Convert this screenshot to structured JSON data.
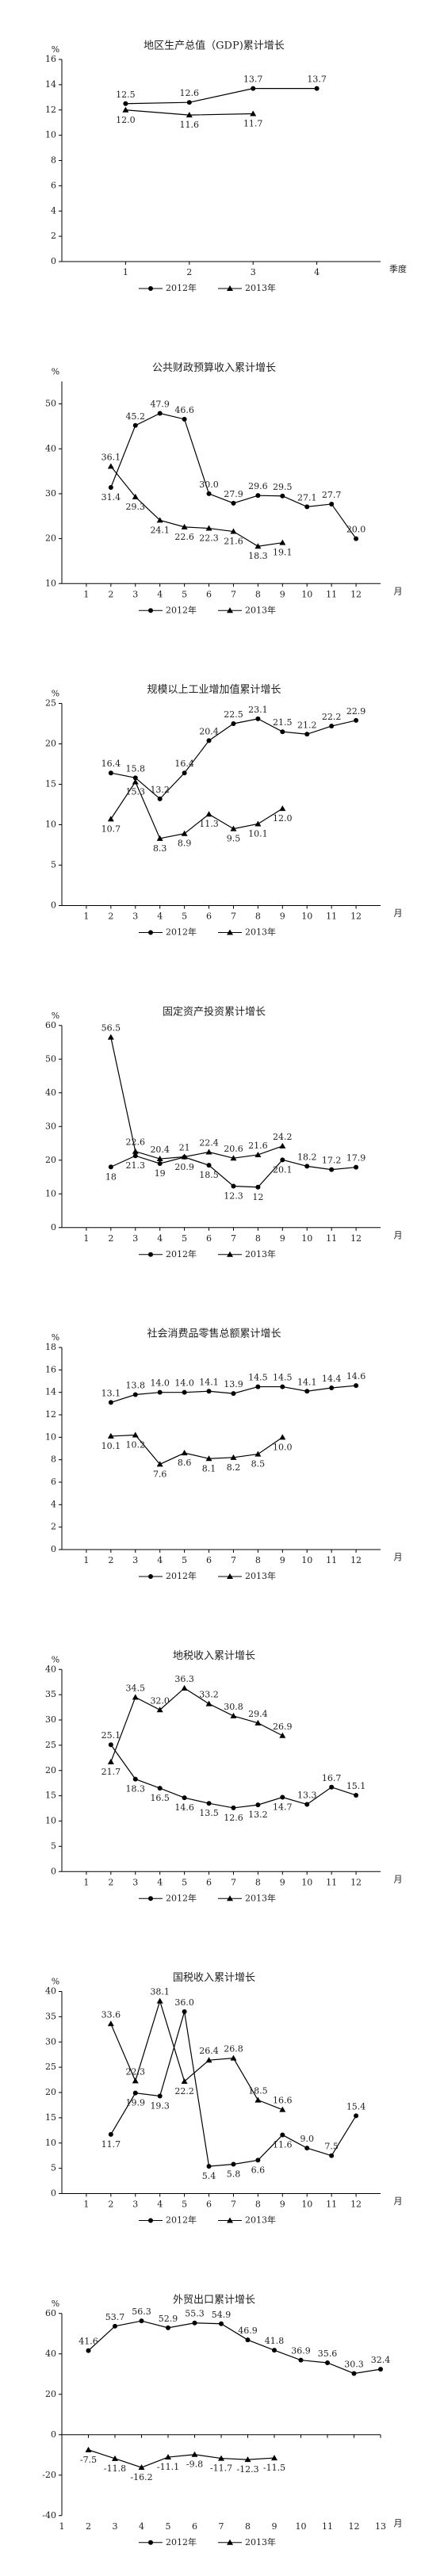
{
  "chart_data": [
    {
      "type": "line",
      "title": "地区生产总值（GDP)累计增长",
      "y_label": "%",
      "x_label": "季度",
      "x": [
        1,
        2,
        3,
        4
      ],
      "xlim": [
        0,
        5
      ],
      "xticks": [
        1,
        2,
        3,
        4
      ],
      "ylim": [
        0,
        16
      ],
      "yticks": [
        0,
        2,
        4,
        6,
        8,
        10,
        12,
        14,
        16
      ],
      "series": [
        {
          "name": "2012年",
          "color": "#000000",
          "marker": "circle",
          "values": [
            12.5,
            12.6,
            13.7,
            13.7
          ],
          "value_labels": [
            "12.5",
            "12.6",
            "13.7",
            "13.7"
          ]
        },
        {
          "name": "2013年",
          "color": "#000000",
          "marker": "triangle",
          "values": [
            12.0,
            11.6,
            11.7,
            null
          ],
          "value_labels": [
            "12.0",
            "11.6",
            "11.7",
            null
          ]
        }
      ]
    },
    {
      "type": "line",
      "title": "公共财政预算收入累计增长",
      "y_label": "%",
      "x_label": "月",
      "x": [
        1,
        2,
        3,
        4,
        5,
        6,
        7,
        8,
        9,
        10,
        11,
        12
      ],
      "xlim": [
        0,
        13
      ],
      "xticks": [
        1,
        2,
        3,
        4,
        5,
        6,
        7,
        8,
        9,
        10,
        11,
        12
      ],
      "ylim": [
        10,
        55
      ],
      "yticks": [
        10,
        20,
        30,
        40,
        50
      ],
      "series": [
        {
          "name": "2012年",
          "color": "#000000",
          "marker": "circle",
          "values": [
            null,
            31.4,
            45.2,
            47.9,
            46.6,
            30.0,
            27.9,
            29.6,
            29.5,
            27.1,
            27.7,
            20.0
          ],
          "value_labels": [
            null,
            "31.4",
            "45.2",
            "47.9",
            "46.6",
            "30.0",
            "27.9",
            "29.6",
            "29.5",
            "27.1",
            "27.7",
            "20.0"
          ]
        },
        {
          "name": "2013年",
          "color": "#000000",
          "marker": "triangle",
          "values": [
            null,
            36.1,
            29.3,
            24.1,
            22.6,
            22.3,
            21.6,
            18.3,
            19.1,
            null,
            null,
            null
          ],
          "value_labels": [
            null,
            "36.1",
            "29.3",
            "24.1",
            "22.6",
            "22.3",
            "21.6",
            "18.3",
            "19.1",
            null,
            null,
            null
          ]
        }
      ]
    },
    {
      "type": "line",
      "title": "规模以上工业增加值累计增长",
      "y_label": "%",
      "x_label": "月",
      "x": [
        1,
        2,
        3,
        4,
        5,
        6,
        7,
        8,
        9,
        10,
        11,
        12
      ],
      "xlim": [
        0,
        13
      ],
      "xticks": [
        1,
        2,
        3,
        4,
        5,
        6,
        7,
        8,
        9,
        10,
        11,
        12
      ],
      "ylim": [
        0,
        25
      ],
      "yticks": [
        0,
        5,
        10,
        15,
        20,
        25
      ],
      "series": [
        {
          "name": "2012年",
          "color": "#000000",
          "marker": "circle",
          "values": [
            null,
            16.4,
            15.8,
            13.2,
            16.4,
            20.4,
            22.5,
            23.1,
            21.5,
            21.2,
            22.2,
            22.9
          ],
          "value_labels": [
            null,
            "16.4",
            "15.8",
            "13.2",
            "16.4",
            "20.4",
            "22.5",
            "23.1",
            "21.5",
            "21.2",
            "22.2",
            "22.9"
          ]
        },
        {
          "name": "2013年",
          "color": "#000000",
          "marker": "triangle",
          "values": [
            null,
            10.7,
            15.3,
            8.3,
            8.9,
            11.3,
            9.5,
            10.1,
            12.0,
            null,
            null,
            null
          ],
          "value_labels": [
            null,
            "10.7",
            "15.3",
            "8.3",
            "8.9",
            "11.3",
            "9.5",
            "10.1",
            "12.0",
            null,
            null,
            null
          ]
        }
      ]
    },
    {
      "type": "line",
      "title": "固定资产投资累计增长",
      "y_label": "%",
      "x_label": "月",
      "x": [
        1,
        2,
        3,
        4,
        5,
        6,
        7,
        8,
        9,
        10,
        11,
        12
      ],
      "xlim": [
        0,
        13
      ],
      "xticks": [
        1,
        2,
        3,
        4,
        5,
        6,
        7,
        8,
        9,
        10,
        11,
        12
      ],
      "ylim": [
        0,
        60
      ],
      "yticks": [
        0,
        10,
        20,
        30,
        40,
        50,
        60
      ],
      "series": [
        {
          "name": "2012年",
          "color": "#000000",
          "marker": "circle",
          "values": [
            null,
            18,
            21.3,
            19,
            20.9,
            18.5,
            12.3,
            12,
            20.1,
            18.2,
            17.2,
            17.9
          ],
          "value_labels": [
            null,
            "18",
            "21.3",
            "19",
            "20.9",
            "18.5",
            "12.3",
            "12",
            "20.1",
            "18.2",
            "17.2",
            "17.9"
          ]
        },
        {
          "name": "2013年",
          "color": "#000000",
          "marker": "triangle",
          "values": [
            null,
            56.5,
            22.6,
            20.4,
            21,
            22.4,
            20.6,
            21.6,
            24.2,
            null,
            null,
            null
          ],
          "value_labels": [
            null,
            "56.5",
            "22.6",
            "20.4",
            "21",
            "22.4",
            "20.6",
            "21.6",
            "24.2",
            null,
            null,
            null
          ]
        }
      ]
    },
    {
      "type": "line",
      "title": "社会消费品零售总额累计增长",
      "y_label": "%",
      "x_label": "月",
      "x": [
        1,
        2,
        3,
        4,
        5,
        6,
        7,
        8,
        9,
        10,
        11,
        12
      ],
      "xlim": [
        0,
        13
      ],
      "xticks": [
        1,
        2,
        3,
        4,
        5,
        6,
        7,
        8,
        9,
        10,
        11,
        12
      ],
      "ylim": [
        0,
        18
      ],
      "yticks": [
        0,
        2,
        4,
        6,
        8,
        10,
        12,
        14,
        16,
        18
      ],
      "series": [
        {
          "name": "2012年",
          "color": "#000000",
          "marker": "circle",
          "values": [
            null,
            13.1,
            13.8,
            14.0,
            14.0,
            14.1,
            13.9,
            14.5,
            14.5,
            14.1,
            14.4,
            14.6
          ],
          "value_labels": [
            null,
            "13.1",
            "13.8",
            "14.0",
            "14.0",
            "14.1",
            "13.9",
            "14.5",
            "14.5",
            "14.1",
            "14.4",
            "14.6"
          ]
        },
        {
          "name": "2013年",
          "color": "#000000",
          "marker": "triangle",
          "values": [
            null,
            10.1,
            10.2,
            7.6,
            8.6,
            8.1,
            8.2,
            8.5,
            10.0,
            null,
            null,
            null
          ],
          "value_labels": [
            null,
            "10.1",
            "10.2",
            "7.6",
            "8.6",
            "8.1",
            "8.2",
            "8.5",
            "10.0",
            null,
            null,
            null
          ]
        }
      ]
    },
    {
      "type": "line",
      "title": "地税收入累计增长",
      "y_label": "%",
      "x_label": "月",
      "x": [
        1,
        2,
        3,
        4,
        5,
        6,
        7,
        8,
        9,
        10,
        11,
        12
      ],
      "xlim": [
        0,
        13
      ],
      "xticks": [
        1,
        2,
        3,
        4,
        5,
        6,
        7,
        8,
        9,
        10,
        11,
        12
      ],
      "ylim": [
        0,
        40
      ],
      "yticks": [
        0,
        5,
        10,
        15,
        20,
        25,
        30,
        35,
        40
      ],
      "series": [
        {
          "name": "2012年",
          "color": "#000000",
          "marker": "circle",
          "values": [
            null,
            25.1,
            18.3,
            16.5,
            14.6,
            13.5,
            12.6,
            13.2,
            14.7,
            13.3,
            16.7,
            15.1
          ],
          "value_labels": [
            null,
            "25.1",
            "18.3",
            "16.5",
            "14.6",
            "13.5",
            "12.6",
            "13.2",
            "14.7",
            "13.3",
            "16.7",
            "15.1"
          ]
        },
        {
          "name": "2013年",
          "color": "#000000",
          "marker": "triangle",
          "values": [
            null,
            21.7,
            34.5,
            32.0,
            36.3,
            33.2,
            30.8,
            29.4,
            26.9,
            null,
            null,
            null
          ],
          "value_labels": [
            null,
            "21.7",
            "34.5",
            "32.0",
            "36.3",
            "33.2",
            "30.8",
            "29.4",
            "26.9",
            null,
            null,
            null
          ]
        }
      ]
    },
    {
      "type": "line",
      "title": "国税收入累计增长",
      "y_label": "%",
      "x_label": "月",
      "x": [
        1,
        2,
        3,
        4,
        5,
        6,
        7,
        8,
        9,
        10,
        11,
        12
      ],
      "xlim": [
        0,
        13
      ],
      "xticks": [
        1,
        2,
        3,
        4,
        5,
        6,
        7,
        8,
        9,
        10,
        11,
        12
      ],
      "ylim": [
        0,
        40
      ],
      "yticks": [
        0,
        5,
        10,
        15,
        20,
        25,
        30,
        35,
        40
      ],
      "series": [
        {
          "name": "2012年",
          "color": "#000000",
          "marker": "circle",
          "values": [
            null,
            11.7,
            19.9,
            19.3,
            36.0,
            5.4,
            5.8,
            6.6,
            11.6,
            9.0,
            7.5,
            15.4
          ],
          "value_labels": [
            null,
            "11.7",
            "19.9",
            "19.3",
            "36.0",
            "5.4",
            "5.8",
            "6.6",
            "11.6",
            "9.0",
            "7.5",
            "15.4"
          ]
        },
        {
          "name": "2013年",
          "color": "#000000",
          "marker": "triangle",
          "values": [
            null,
            33.6,
            22.3,
            38.1,
            22.2,
            26.4,
            26.8,
            18.5,
            16.6,
            null,
            null,
            null
          ],
          "value_labels": [
            null,
            "33.6",
            "22.3",
            "38.1",
            "22.2",
            "26.4",
            "26.8",
            "18.5",
            "16.6",
            null,
            null,
            null
          ]
        }
      ]
    },
    {
      "type": "line",
      "title": "外贸出口累计增长",
      "y_label": "%",
      "x_label": "月",
      "x": [
        1,
        2,
        3,
        4,
        5,
        6,
        7,
        8,
        9,
        10,
        11,
        12,
        13
      ],
      "xlim": [
        1,
        13
      ],
      "xticks": [
        1,
        2,
        3,
        4,
        5,
        6,
        7,
        8,
        9,
        10,
        11,
        12,
        13
      ],
      "ylim": [
        -40,
        60
      ],
      "yticks": [
        -40,
        -20,
        0,
        20,
        40,
        60
      ],
      "series": [
        {
          "name": "2012年",
          "color": "#000000",
          "marker": "circle",
          "values": [
            null,
            41.6,
            53.7,
            56.3,
            52.9,
            55.3,
            54.9,
            46.9,
            41.8,
            36.9,
            35.6,
            30.3,
            32.4
          ],
          "value_labels": [
            null,
            "41.6",
            "53.7",
            "56.3",
            "52.9",
            "55.3",
            "54.9",
            "46.9",
            "41.8",
            "36.9",
            "35.6",
            "30.3",
            "32.4"
          ]
        },
        {
          "name": "2013年",
          "color": "#000000",
          "marker": "triangle",
          "values": [
            null,
            -7.5,
            -11.8,
            -16.2,
            -11.1,
            -9.8,
            -11.7,
            -12.3,
            -11.5,
            null,
            null,
            null,
            null
          ],
          "value_labels": [
            null,
            "-7.5",
            "-11.8",
            "-16.2",
            "-11.1",
            "-9.8",
            "-11.7",
            "-12.3",
            "-11.5",
            null,
            null,
            null,
            null
          ]
        }
      ]
    }
  ]
}
